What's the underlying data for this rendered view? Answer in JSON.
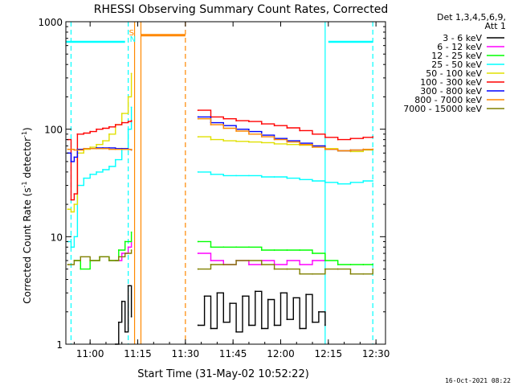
{
  "chart_data": {
    "type": "line",
    "title": "RHESSI Observing Summary Count Rates, Corrected",
    "xlabel": "Start Time (31-May-02 10:52:22)",
    "ylabel_main": "Corrected Count Rate (s",
    "ylabel_sup1": "-1",
    "ylabel_mid": " detector",
    "ylabel_sup2": "-1",
    "ylabel_end": ")",
    "yscale": "log",
    "ylim": [
      1,
      1000
    ],
    "xlim": [
      "10:52:22",
      "12:33:00"
    ],
    "x_ticks": [
      "11:00",
      "11:15",
      "11:30",
      "11:45",
      "12:00",
      "12:15",
      "12:30"
    ],
    "y_ticks": [
      "1",
      "10",
      "100",
      "1000"
    ],
    "legend": {
      "header": "Det 1,3,4,5,6,9,",
      "header2": "Att 1",
      "placement": "right-outside",
      "entries": [
        {
          "label": "3 - 6 keV",
          "color": "#000000"
        },
        {
          "label": "6 - 12 keV",
          "color": "#ff00ff"
        },
        {
          "label": "12 - 25 keV",
          "color": "#00ff00"
        },
        {
          "label": "25 - 50 keV",
          "color": "#00ffff"
        },
        {
          "label": "50 - 100 keV",
          "color": "#e0e000"
        },
        {
          "label": "100 - 300 keV",
          "color": "#ff0000"
        },
        {
          "label": "300 - 800 keV",
          "color": "#0000ff"
        },
        {
          "label": "800 - 7000 keV",
          "color": "#ff8800"
        },
        {
          "label": "7000 - 15000 keV",
          "color": "#808000"
        }
      ]
    },
    "annotations": [
      {
        "text": "S",
        "color": "#ff8800"
      },
      {
        "text": "N",
        "color": "#00ffff"
      }
    ],
    "series": [
      {
        "name": "3 - 6 keV",
        "color": "#000000",
        "x": [
          "11:08",
          "11:09",
          "11:10",
          "11:11",
          "11:12",
          "11:13",
          "11:34",
          "11:36",
          "11:38",
          "11:40",
          "11:42",
          "11:44",
          "11:46",
          "11:48",
          "11:50",
          "11:52",
          "11:54",
          "11:56",
          "11:58",
          "12:00",
          "12:02",
          "12:04",
          "12:06",
          "12:08",
          "12:10",
          "12:12",
          "12:14"
        ],
        "values": [
          1,
          1.6,
          2.5,
          1.3,
          3.5,
          1.8,
          1.5,
          2.8,
          1.4,
          3.0,
          1.6,
          2.4,
          1.3,
          2.8,
          1.5,
          3.1,
          1.4,
          2.6,
          1.5,
          3.0,
          1.7,
          2.7,
          1.4,
          2.9,
          1.6,
          2.0,
          1.5
        ]
      },
      {
        "name": "6 - 12 keV",
        "color": "#ff00ff",
        "x": [
          "11:08",
          "11:10",
          "11:12",
          "11:13",
          "11:34",
          "11:38",
          "11:42",
          "11:46",
          "11:50",
          "11:54",
          "11:58",
          "12:02",
          "12:06",
          "12:10",
          "12:14"
        ],
        "values": [
          6,
          7,
          8,
          9,
          7,
          6,
          5.5,
          6,
          5.5,
          6,
          5.5,
          6,
          5.5,
          6,
          6
        ]
      },
      {
        "name": "12 - 25 keV",
        "color": "#00ff00",
        "x": [
          "10:55",
          "10:57",
          "11:00",
          "11:03",
          "11:06",
          "11:09",
          "11:11",
          "11:13",
          "11:34",
          "11:38",
          "11:42",
          "11:46",
          "11:50",
          "11:54",
          "11:58",
          "12:02",
          "12:06",
          "12:10",
          "12:14",
          "12:18",
          "12:22",
          "12:26",
          "12:29"
        ],
        "values": [
          6,
          5,
          6,
          6.5,
          6,
          7.5,
          9,
          11,
          9,
          8,
          8,
          8,
          8,
          7.5,
          7.5,
          7.5,
          7.5,
          7,
          6,
          5.5,
          5.5,
          5.5,
          5.5
        ]
      },
      {
        "name": "25 - 50 keV",
        "color": "#00ffff",
        "x": [
          "10:53",
          "10:54",
          "10:55",
          "10:56",
          "10:58",
          "11:00",
          "11:02",
          "11:04",
          "11:06",
          "11:08",
          "11:10",
          "11:12",
          "11:13",
          "11:34",
          "11:38",
          "11:42",
          "11:46",
          "11:50",
          "11:54",
          "11:58",
          "12:02",
          "12:06",
          "12:10",
          "12:14",
          "12:18",
          "12:22",
          "12:26",
          "12:29"
        ],
        "values": [
          9,
          8,
          10,
          30,
          35,
          38,
          40,
          42,
          45,
          52,
          65,
          100,
          160,
          40,
          38,
          37,
          37,
          37,
          36,
          36,
          35,
          34,
          33,
          32,
          31,
          32,
          33,
          33
        ]
      },
      {
        "name": "50 - 100 keV",
        "color": "#e0e000",
        "x": [
          "10:53",
          "10:54",
          "10:55",
          "10:56",
          "10:58",
          "11:00",
          "11:02",
          "11:04",
          "11:06",
          "11:08",
          "11:10",
          "11:12",
          "11:13",
          "11:34",
          "11:38",
          "11:42",
          "11:46",
          "11:50",
          "11:54",
          "11:58",
          "12:02",
          "12:06",
          "12:10",
          "12:14",
          "12:18",
          "12:22",
          "12:26",
          "12:29"
        ],
        "values": [
          18,
          17,
          20,
          60,
          65,
          68,
          72,
          78,
          90,
          110,
          140,
          200,
          330,
          85,
          80,
          78,
          77,
          76,
          75,
          73,
          72,
          71,
          70,
          66,
          63,
          62,
          64,
          65
        ]
      },
      {
        "name": "100 - 300 keV",
        "color": "#ff0000",
        "x": [
          "10:53",
          "10:54",
          "10:55",
          "10:56",
          "10:58",
          "11:00",
          "11:02",
          "11:04",
          "11:06",
          "11:08",
          "11:10",
          "11:12",
          "11:13",
          "11:34",
          "11:38",
          "11:42",
          "11:46",
          "11:50",
          "11:54",
          "11:58",
          "12:02",
          "12:06",
          "12:10",
          "12:14",
          "12:18",
          "12:22",
          "12:26",
          "12:29"
        ],
        "values": [
          80,
          22,
          25,
          90,
          92,
          95,
          100,
          102,
          105,
          110,
          115,
          118,
          120,
          150,
          130,
          125,
          120,
          118,
          112,
          108,
          103,
          97,
          90,
          84,
          80,
          82,
          84,
          85
        ]
      },
      {
        "name": "300 - 800 keV",
        "color": "#0000ff",
        "x": [
          "10:53",
          "10:54",
          "10:55",
          "10:56",
          "10:58",
          "11:00",
          "11:02",
          "11:04",
          "11:06",
          "11:08",
          "11:10",
          "11:12",
          "11:13",
          "11:34",
          "11:38",
          "11:42",
          "11:46",
          "11:50",
          "11:54",
          "11:58",
          "12:02",
          "12:06",
          "12:10",
          "12:14",
          "12:18",
          "12:22",
          "12:26",
          "12:29"
        ],
        "values": [
          60,
          50,
          55,
          65,
          66,
          66,
          67,
          67,
          67,
          66,
          66,
          65,
          64,
          130,
          115,
          108,
          100,
          95,
          88,
          82,
          78,
          74,
          70,
          65,
          63,
          64,
          65,
          65
        ]
      },
      {
        "name": "800 - 7000 keV",
        "color": "#ff8800",
        "x": [
          "10:53",
          "10:55",
          "10:58",
          "11:00",
          "11:02",
          "11:04",
          "11:06",
          "11:08",
          "11:10",
          "11:12",
          "11:13",
          "11:34",
          "11:38",
          "11:42",
          "11:46",
          "11:50",
          "11:54",
          "11:58",
          "12:02",
          "12:06",
          "12:10",
          "12:14",
          "12:18",
          "12:22",
          "12:26",
          "12:29"
        ],
        "values": [
          65,
          64,
          66,
          66,
          66,
          66,
          65,
          65,
          65,
          65,
          64,
          125,
          110,
          102,
          96,
          90,
          85,
          80,
          76,
          72,
          68,
          65,
          63,
          64,
          65,
          65
        ]
      },
      {
        "name": "7000 - 15000 keV",
        "color": "#808000",
        "x": [
          "10:53",
          "10:55",
          "10:57",
          "11:00",
          "11:03",
          "11:06",
          "11:09",
          "11:11",
          "11:13",
          "11:34",
          "11:38",
          "11:42",
          "11:46",
          "11:50",
          "11:54",
          "11:58",
          "12:02",
          "12:06",
          "12:10",
          "12:14",
          "12:18",
          "12:22",
          "12:26",
          "12:29"
        ],
        "values": [
          5.5,
          6,
          6.5,
          6,
          6.5,
          6,
          6.5,
          7,
          7.5,
          5,
          5.5,
          5.5,
          6,
          6,
          5.5,
          5,
          5,
          4.5,
          4.5,
          5,
          5,
          4.5,
          4.5,
          5
        ]
      }
    ],
    "attenuator_bars": [
      {
        "from": "11:16",
        "to": "11:30",
        "value": 750,
        "color": "#ff8800"
      }
    ],
    "in_attenuation_markers": [
      {
        "from": "10:52:22",
        "to": "11:11",
        "value": 650,
        "color": "#00ffff"
      },
      {
        "from": "12:15",
        "to": "12:29",
        "value": 650,
        "color": "#00ffff"
      }
    ],
    "vertical_markers": [
      {
        "at": "10:54",
        "color": "#00ffff",
        "style": "dashed"
      },
      {
        "at": "11:12",
        "color": "#00ffff",
        "style": "dashed"
      },
      {
        "at": "11:14",
        "color": "#ff8800",
        "style": "solid"
      },
      {
        "at": "11:16",
        "color": "#ff8800",
        "style": "solid"
      },
      {
        "at": "11:30",
        "color": "#ff8800",
        "style": "dashed"
      },
      {
        "at": "12:14",
        "color": "#00ffff",
        "style": "solid"
      },
      {
        "at": "12:29",
        "color": "#00ffff",
        "style": "dashed"
      }
    ],
    "footer_timestamp": "16-Oct-2021 08:22"
  }
}
